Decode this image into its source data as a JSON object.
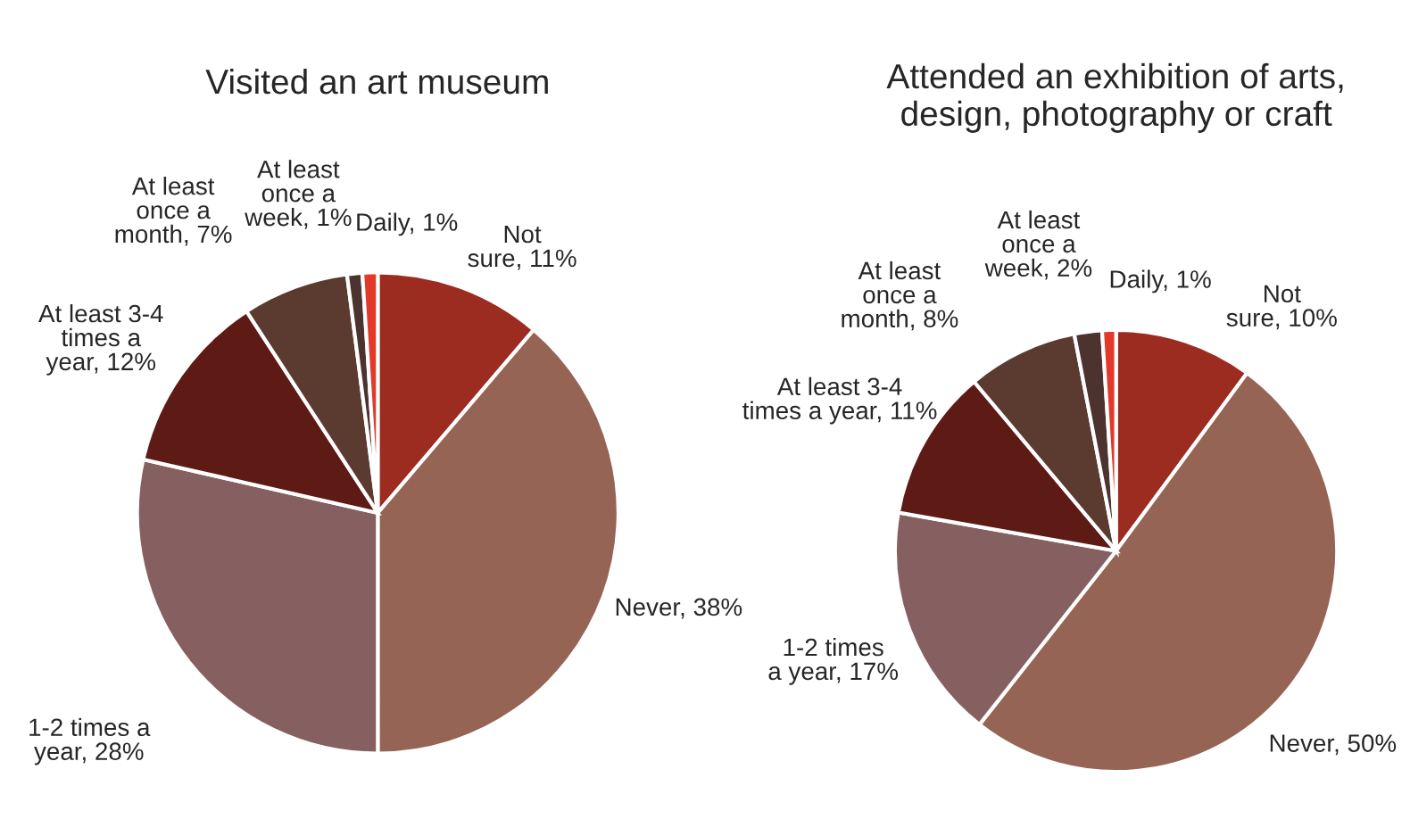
{
  "chart_data": [
    {
      "type": "pie",
      "title": "Visited an art museum",
      "categories": [
        "Not\nsure",
        "Never",
        "1-2 times a\nyear",
        "At least 3-4\ntimes a\nyear",
        "At least\nonce a\nmonth",
        "At least\nonce a\nweek",
        "Daily"
      ],
      "values": [
        11,
        38,
        28,
        12,
        7,
        1,
        1
      ],
      "value_labels": [
        "11%",
        "38%",
        "28%",
        "12%",
        "7%",
        "1%",
        "1%"
      ],
      "colors": [
        "#9c2b20",
        "#956454",
        "#866060",
        "#5e1b15",
        "#5b3a30",
        "#4d3330",
        "#e2392b"
      ]
    },
    {
      "type": "pie",
      "title": "Attended an exhibition of arts,\ndesign, photography or craft",
      "categories": [
        "Not\nsure",
        "Never",
        "1-2 times\na year",
        "At least 3-4\ntimes a year",
        "At least\nonce a\nmonth",
        "At least\nonce a\nweek",
        "Daily"
      ],
      "values": [
        10,
        50,
        17,
        11,
        8,
        2,
        1
      ],
      "value_labels": [
        "10%",
        "50%",
        "17%",
        "11%",
        "8%",
        "2%",
        "1%"
      ],
      "colors": [
        "#9c2b20",
        "#956454",
        "#866060",
        "#5e1b15",
        "#5b3a30",
        "#4d3330",
        "#e2392b"
      ]
    }
  ]
}
